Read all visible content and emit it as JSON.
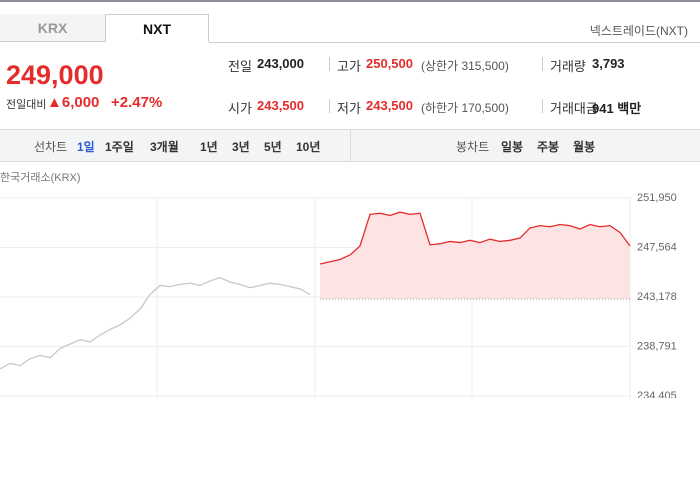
{
  "tabs": [
    "KRX",
    "NXT"
  ],
  "market_link": "넥스트레이드(NXT)",
  "price": "249,000",
  "change_label": "전일대비",
  "change": "▲6,000",
  "change_rate": "+2.47%",
  "info": [
    [
      {
        "label": "전일",
        "value": "243,000"
      },
      {
        "label": "고가",
        "value": "250,500",
        "note": "(상한가 315,500)"
      },
      {
        "label": "거래량",
        "value": "3,793"
      }
    ],
    [
      {
        "label": "시가",
        "value": "243,500"
      },
      {
        "label": "저가",
        "value": "243,500",
        "note": "(하한가 170,500)"
      },
      {
        "label": "거래대금",
        "value": "941 백만"
      }
    ]
  ],
  "line_chart": {
    "label": "선차트",
    "periods": [
      "1일",
      "1주일",
      "3개월",
      "1년",
      "3년",
      "5년",
      "10년"
    ]
  },
  "candle_chart": {
    "label": "봉차트",
    "periods": [
      "일봉",
      "주봉",
      "월봉"
    ]
  },
  "chart_data": {
    "type": "line",
    "title": "한국거래소(KRX)",
    "ylim": [
      234405,
      251950
    ],
    "yticks": [
      {
        "value": 234405,
        "label": "234,405"
      },
      {
        "value": 238791,
        "label": "238,791"
      },
      {
        "value": 243178,
        "label": "243,178"
      },
      {
        "value": 247564,
        "label": "247,564"
      },
      {
        "value": 251950,
        "label": "251,950"
      }
    ],
    "reference": 243000,
    "grid": true,
    "series": [
      {
        "color": "#c8c8c8",
        "values": [
          236800,
          237300,
          237100,
          237700,
          238000,
          237800,
          238600,
          239000,
          239400,
          239200,
          239800,
          240300,
          240700,
          241300,
          242100,
          243400,
          244200,
          244100,
          244300,
          244400,
          244200,
          244600,
          244900,
          244500,
          244300,
          244000,
          244200,
          244400,
          244300,
          244100,
          243900,
          243400,
          null,
          null,
          null,
          null,
          null,
          null,
          null,
          null,
          null,
          null,
          null,
          null,
          null,
          null,
          null,
          null,
          null,
          null,
          null,
          null,
          null,
          null,
          null,
          null,
          null,
          null,
          null,
          null,
          null,
          null,
          null,
          null
        ]
      },
      {
        "color": "#e52b2b",
        "fill": "#fde3e3",
        "values": [
          null,
          null,
          null,
          null,
          null,
          null,
          null,
          null,
          null,
          null,
          null,
          null,
          null,
          null,
          null,
          null,
          null,
          null,
          null,
          null,
          null,
          null,
          null,
          null,
          null,
          null,
          null,
          null,
          null,
          null,
          null,
          null,
          246100,
          246300,
          246500,
          246900,
          247700,
          250500,
          250600,
          250400,
          250700,
          250500,
          250600,
          247800,
          247900,
          248100,
          248000,
          248200,
          248000,
          248300,
          248100,
          248200,
          248400,
          249300,
          249500,
          249400,
          249600,
          249500,
          249200,
          249600,
          249400,
          249500,
          248900,
          247700
        ]
      }
    ]
  }
}
